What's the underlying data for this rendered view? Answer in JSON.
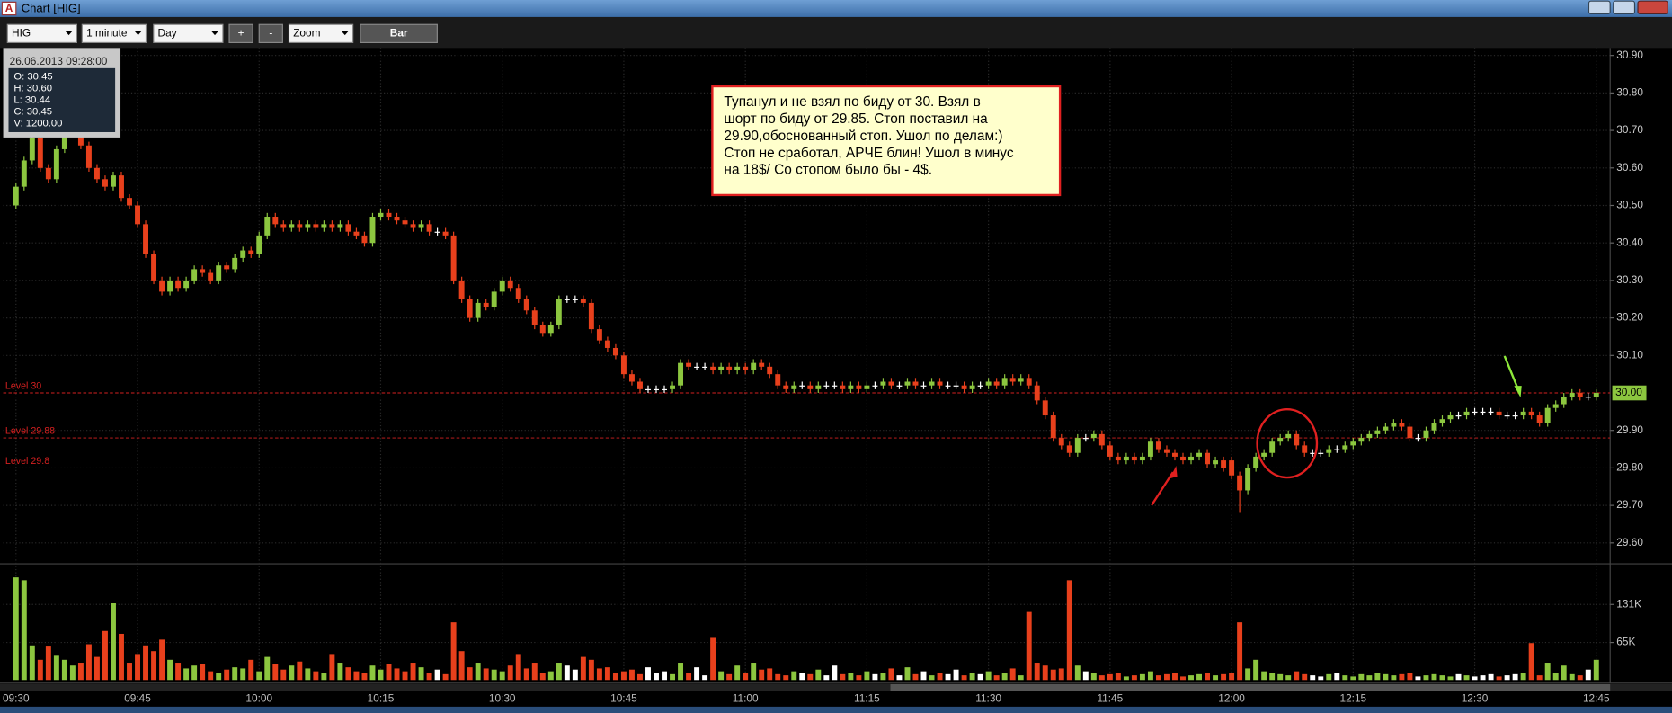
{
  "window": {
    "title": "Chart [HIG]",
    "icon": "A"
  },
  "toolbar": {
    "symbol": "HIG",
    "interval": "1 minute",
    "range": "Day",
    "plus": "+",
    "minus": "-",
    "zoom": "Zoom",
    "mode": "Bar"
  },
  "info": {
    "datetime": "26.06.2013 09:28:00",
    "lines": [
      "O: 30.45",
      "H: 30.60",
      "L: 30.44",
      "C: 30.45",
      "V: 1200.00"
    ]
  },
  "annotation": {
    "lines": [
      "Тупанул и не взял по биду от 30. Взял в",
      "шорт по биду от 29.85. Стоп поставил на",
      "29.90,обоснованный стоп. Ушол по делам:)",
      "Стоп не сработал, АРЧЕ блин! Ушол в минус",
      "на 18$/ Со стопом было бы - 4$."
    ]
  },
  "chart_data": {
    "type": "candlestick",
    "grid": true,
    "up_color": "#8cc63f",
    "down_color": "#e8401c",
    "flat_color": "#ffffff",
    "level_color": "#d42020",
    "x": [
      "09:30",
      "09:31",
      "09:32",
      "09:33",
      "09:34",
      "09:35",
      "09:36",
      "09:37",
      "09:38",
      "09:39",
      "09:40",
      "09:41",
      "09:42",
      "09:43",
      "09:44",
      "09:45",
      "09:46",
      "09:47",
      "09:48",
      "09:49",
      "09:50",
      "09:51",
      "09:52",
      "09:53",
      "09:54",
      "09:55",
      "09:56",
      "09:57",
      "09:58",
      "09:59",
      "10:00",
      "10:01",
      "10:02",
      "10:03",
      "10:04",
      "10:05",
      "10:06",
      "10:07",
      "10:08",
      "10:09",
      "10:10",
      "10:11",
      "10:12",
      "10:13",
      "10:14",
      "10:15",
      "10:16",
      "10:17",
      "10:18",
      "10:19",
      "10:20",
      "10:21",
      "10:22",
      "10:23",
      "10:24",
      "10:25",
      "10:26",
      "10:27",
      "10:28",
      "10:29",
      "10:30",
      "10:31",
      "10:32",
      "10:33",
      "10:34",
      "10:35",
      "10:36",
      "10:37",
      "10:38",
      "10:39",
      "10:40",
      "10:41",
      "10:42",
      "10:43",
      "10:44",
      "10:45",
      "10:46",
      "10:47",
      "10:48",
      "10:49",
      "10:50",
      "10:51",
      "10:52",
      "10:53",
      "10:54",
      "10:55",
      "10:56",
      "10:57",
      "10:58",
      "10:59",
      "11:00",
      "11:01",
      "11:02",
      "11:03",
      "11:04",
      "11:05",
      "11:06",
      "11:07",
      "11:08",
      "11:09",
      "11:10",
      "11:11",
      "11:12",
      "11:13",
      "11:14",
      "11:15",
      "11:16",
      "11:17",
      "11:18",
      "11:19",
      "11:20",
      "11:21",
      "11:22",
      "11:23",
      "11:24",
      "11:25",
      "11:26",
      "11:27",
      "11:28",
      "11:29",
      "11:30",
      "11:31",
      "11:32",
      "11:33",
      "11:34",
      "11:35",
      "11:36",
      "11:37",
      "11:38",
      "11:39",
      "11:40",
      "11:41",
      "11:42",
      "11:43",
      "11:44",
      "11:45",
      "11:46",
      "11:47",
      "11:48",
      "11:49",
      "11:50",
      "11:51",
      "11:52",
      "11:53",
      "11:54",
      "11:55",
      "11:56",
      "11:57",
      "11:58",
      "11:59",
      "12:00",
      "12:01",
      "12:02",
      "12:03",
      "12:04",
      "12:05",
      "12:06",
      "12:07",
      "12:08",
      "12:09",
      "12:10",
      "12:11",
      "12:12",
      "12:13",
      "12:14",
      "12:15",
      "12:16",
      "12:17",
      "12:18",
      "12:19",
      "12:20",
      "12:21",
      "12:22",
      "12:23",
      "12:24",
      "12:25",
      "12:26",
      "12:27",
      "12:28",
      "12:29",
      "12:30",
      "12:31",
      "12:32",
      "12:33",
      "12:34",
      "12:35",
      "12:36",
      "12:37",
      "12:38",
      "12:39",
      "12:40",
      "12:41",
      "12:42",
      "12:43",
      "12:44",
      "12:45"
    ],
    "open": [
      30.5,
      30.55,
      30.62,
      30.68,
      30.6,
      30.57,
      30.65,
      30.7,
      30.74,
      30.66,
      30.6,
      30.57,
      30.55,
      30.58,
      30.52,
      30.5,
      30.45,
      30.37,
      30.3,
      30.27,
      30.3,
      30.28,
      30.3,
      30.33,
      30.32,
      30.3,
      30.34,
      30.33,
      30.36,
      30.38,
      30.37,
      30.42,
      30.47,
      30.45,
      30.44,
      30.45,
      30.44,
      30.45,
      30.44,
      30.45,
      30.44,
      30.45,
      30.43,
      30.42,
      30.4,
      30.47,
      30.48,
      30.47,
      30.46,
      30.45,
      30.44,
      30.45,
      30.43,
      30.43,
      30.42,
      30.3,
      30.25,
      30.2,
      30.24,
      30.23,
      30.27,
      30.3,
      30.28,
      30.25,
      30.22,
      30.18,
      30.16,
      30.18,
      30.25,
      30.25,
      30.25,
      30.24,
      30.17,
      30.14,
      30.12,
      30.1,
      30.05,
      30.03,
      30.01,
      30.01,
      30.01,
      30.01,
      30.02,
      30.08,
      30.07,
      30.07,
      30.07,
      30.06,
      30.07,
      30.06,
      30.07,
      30.06,
      30.08,
      30.07,
      30.05,
      30.02,
      30.01,
      30.02,
      30.02,
      30.01,
      30.02,
      30.02,
      30.02,
      30.01,
      30.02,
      30.01,
      30.02,
      30.02,
      30.03,
      30.02,
      30.02,
      30.03,
      30.02,
      30.02,
      30.03,
      30.02,
      30.02,
      30.02,
      30.01,
      30.02,
      30.02,
      30.03,
      30.02,
      30.04,
      30.03,
      30.04,
      30.02,
      29.98,
      29.94,
      29.88,
      29.86,
      29.84,
      29.88,
      29.88,
      29.89,
      29.86,
      29.83,
      29.82,
      29.83,
      29.82,
      29.83,
      29.87,
      29.85,
      29.84,
      29.83,
      29.82,
      29.83,
      29.84,
      29.81,
      29.82,
      29.82,
      29.78,
      29.74,
      29.8,
      29.83,
      29.84,
      29.87,
      29.88,
      29.89,
      29.86,
      29.84,
      29.84,
      29.84,
      29.85,
      29.85,
      29.86,
      29.87,
      29.88,
      29.89,
      29.9,
      29.91,
      29.92,
      29.91,
      29.88,
      29.88,
      29.9,
      29.92,
      29.93,
      29.94,
      29.94,
      29.95,
      29.95,
      29.95,
      29.95,
      29.94,
      29.94,
      29.94,
      29.95,
      29.94,
      29.92,
      29.96,
      29.97,
      29.99,
      30.0,
      29.99,
      29.99
    ],
    "high": [
      30.56,
      30.63,
      30.69,
      30.69,
      30.61,
      30.66,
      30.71,
      30.75,
      30.75,
      30.67,
      30.61,
      30.58,
      30.59,
      30.59,
      30.53,
      30.51,
      30.46,
      30.38,
      30.31,
      30.31,
      30.31,
      30.31,
      30.34,
      30.34,
      30.33,
      30.35,
      30.35,
      30.37,
      30.39,
      30.39,
      30.43,
      30.48,
      30.48,
      30.46,
      30.46,
      30.46,
      30.46,
      30.46,
      30.46,
      30.46,
      30.46,
      30.46,
      30.44,
      30.43,
      30.48,
      30.49,
      30.49,
      30.48,
      30.47,
      30.46,
      30.46,
      30.46,
      30.44,
      30.44,
      30.43,
      30.31,
      30.26,
      30.25,
      30.25,
      30.28,
      30.31,
      30.31,
      30.29,
      30.26,
      30.23,
      30.19,
      30.19,
      30.26,
      30.26,
      30.26,
      30.26,
      30.25,
      30.18,
      30.15,
      30.13,
      30.11,
      30.06,
      30.04,
      30.02,
      30.02,
      30.02,
      30.03,
      30.09,
      30.09,
      30.08,
      30.08,
      30.08,
      30.08,
      30.08,
      30.08,
      30.08,
      30.09,
      30.09,
      30.08,
      30.06,
      30.03,
      30.03,
      30.03,
      30.03,
      30.03,
      30.03,
      30.03,
      30.03,
      30.03,
      30.03,
      30.03,
      30.03,
      30.04,
      30.04,
      30.03,
      30.04,
      30.04,
      30.03,
      30.04,
      30.04,
      30.03,
      30.03,
      30.03,
      30.03,
      30.03,
      30.04,
      30.04,
      30.05,
      30.05,
      30.05,
      30.05,
      30.03,
      29.99,
      29.95,
      29.89,
      29.87,
      29.89,
      29.89,
      29.9,
      29.9,
      29.87,
      29.84,
      29.84,
      29.84,
      29.84,
      29.88,
      29.88,
      29.86,
      29.85,
      29.84,
      29.84,
      29.85,
      29.85,
      29.83,
      29.83,
      29.83,
      29.79,
      29.81,
      29.84,
      29.85,
      29.88,
      29.89,
      29.9,
      29.9,
      29.87,
      29.85,
      29.85,
      29.86,
      29.86,
      29.87,
      29.88,
      29.89,
      29.9,
      29.91,
      29.92,
      29.93,
      29.93,
      29.92,
      29.89,
      29.91,
      29.93,
      29.94,
      29.95,
      29.95,
      29.96,
      29.96,
      29.96,
      29.96,
      29.96,
      29.95,
      29.95,
      29.96,
      29.96,
      29.95,
      29.97,
      29.98,
      30.0,
      30.01,
      30.01,
      30.0,
      30.01
    ],
    "low": [
      30.49,
      30.54,
      30.61,
      30.59,
      30.56,
      30.56,
      30.64,
      30.69,
      30.65,
      30.59,
      30.56,
      30.54,
      30.54,
      30.51,
      30.49,
      30.44,
      30.36,
      30.29,
      30.26,
      30.26,
      30.27,
      30.27,
      30.29,
      30.31,
      30.29,
      30.29,
      30.32,
      30.32,
      30.35,
      30.36,
      30.36,
      30.41,
      30.44,
      30.43,
      30.43,
      30.43,
      30.43,
      30.43,
      30.43,
      30.43,
      30.43,
      30.42,
      30.41,
      30.39,
      30.39,
      30.46,
      30.46,
      30.45,
      30.44,
      30.43,
      30.43,
      30.42,
      30.42,
      30.41,
      30.29,
      30.24,
      30.19,
      30.19,
      30.22,
      30.22,
      30.26,
      30.27,
      30.24,
      30.21,
      30.17,
      30.15,
      30.15,
      30.17,
      30.24,
      30.24,
      30.23,
      30.16,
      30.13,
      30.11,
      30.09,
      30.04,
      30.02,
      30.0,
      30.0,
      30.0,
      30.0,
      30.0,
      30.01,
      30.06,
      30.06,
      30.06,
      30.05,
      30.05,
      30.05,
      30.05,
      30.05,
      30.05,
      30.06,
      30.04,
      30.01,
      30.0,
      30.0,
      30.01,
      30.0,
      30.0,
      30.01,
      30.01,
      30.0,
      30.0,
      30.0,
      30.0,
      30.01,
      30.01,
      30.01,
      30.01,
      30.01,
      30.01,
      30.01,
      30.01,
      30.01,
      30.01,
      30.01,
      30.0,
      30.0,
      30.01,
      30.01,
      30.01,
      30.01,
      30.02,
      30.02,
      30.01,
      29.97,
      29.93,
      29.87,
      29.85,
      29.83,
      29.83,
      29.87,
      29.87,
      29.85,
      29.82,
      29.81,
      29.81,
      29.81,
      29.81,
      29.82,
      29.84,
      29.83,
      29.82,
      29.81,
      29.81,
      29.82,
      29.8,
      29.8,
      29.79,
      29.77,
      29.68,
      29.73,
      29.79,
      29.82,
      29.83,
      29.86,
      29.87,
      29.85,
      29.83,
      29.83,
      29.83,
      29.83,
      29.84,
      29.84,
      29.85,
      29.86,
      29.87,
      29.88,
      29.89,
      29.9,
      29.9,
      29.87,
      29.87,
      29.87,
      29.89,
      29.91,
      29.92,
      29.93,
      29.93,
      29.94,
      29.94,
      29.94,
      29.93,
      29.93,
      29.93,
      29.93,
      29.93,
      29.91,
      29.91,
      29.95,
      29.96,
      29.98,
      29.98,
      29.98,
      29.98
    ],
    "close": [
      30.55,
      30.62,
      30.68,
      30.6,
      30.57,
      30.65,
      30.7,
      30.74,
      30.66,
      30.6,
      30.57,
      30.55,
      30.58,
      30.52,
      30.5,
      30.45,
      30.37,
      30.3,
      30.27,
      30.3,
      30.28,
      30.3,
      30.33,
      30.32,
      30.3,
      30.34,
      30.33,
      30.36,
      30.38,
      30.37,
      30.42,
      30.47,
      30.45,
      30.44,
      30.45,
      30.44,
      30.45,
      30.44,
      30.45,
      30.44,
      30.45,
      30.43,
      30.42,
      30.4,
      30.47,
      30.48,
      30.47,
      30.46,
      30.45,
      30.44,
      30.45,
      30.43,
      30.43,
      30.42,
      30.3,
      30.25,
      30.2,
      30.24,
      30.23,
      30.27,
      30.3,
      30.28,
      30.25,
      30.22,
      30.18,
      30.16,
      30.18,
      30.25,
      30.25,
      30.25,
      30.24,
      30.17,
      30.14,
      30.12,
      30.1,
      30.05,
      30.03,
      30.01,
      30.01,
      30.01,
      30.01,
      30.02,
      30.08,
      30.07,
      30.07,
      30.07,
      30.06,
      30.07,
      30.06,
      30.07,
      30.06,
      30.08,
      30.07,
      30.05,
      30.02,
      30.01,
      30.02,
      30.02,
      30.01,
      30.02,
      30.02,
      30.02,
      30.01,
      30.02,
      30.01,
      30.02,
      30.02,
      30.03,
      30.02,
      30.02,
      30.03,
      30.02,
      30.02,
      30.03,
      30.02,
      30.02,
      30.02,
      30.01,
      30.02,
      30.02,
      30.03,
      30.02,
      30.04,
      30.03,
      30.04,
      30.02,
      29.98,
      29.94,
      29.88,
      29.86,
      29.84,
      29.88,
      29.88,
      29.89,
      29.86,
      29.83,
      29.82,
      29.83,
      29.82,
      29.83,
      29.87,
      29.85,
      29.84,
      29.83,
      29.82,
      29.83,
      29.84,
      29.81,
      29.82,
      29.8,
      29.78,
      29.74,
      29.8,
      29.83,
      29.84,
      29.87,
      29.88,
      29.89,
      29.86,
      29.84,
      29.84,
      29.84,
      29.85,
      29.85,
      29.86,
      29.87,
      29.88,
      29.89,
      29.9,
      29.91,
      29.92,
      29.91,
      29.88,
      29.88,
      29.9,
      29.92,
      29.93,
      29.94,
      29.94,
      29.95,
      29.95,
      29.95,
      29.95,
      29.94,
      29.94,
      29.94,
      29.95,
      29.94,
      29.92,
      29.96,
      29.97,
      29.99,
      30.0,
      29.99,
      29.99,
      30.0
    ],
    "volume": [
      178000,
      173000,
      60000,
      35000,
      58000,
      42000,
      35000,
      25000,
      30000,
      62000,
      40000,
      85000,
      133000,
      80000,
      30000,
      45000,
      60000,
      50000,
      70000,
      35000,
      30000,
      20000,
      25000,
      28000,
      15000,
      12000,
      18000,
      22000,
      20000,
      35000,
      15000,
      40000,
      28000,
      18000,
      25000,
      32000,
      20000,
      15000,
      12000,
      45000,
      30000,
      22000,
      15000,
      12000,
      25000,
      18000,
      28000,
      20000,
      15000,
      30000,
      22000,
      12000,
      18000,
      10000,
      100000,
      50000,
      22000,
      30000,
      20000,
      18000,
      15000,
      25000,
      45000,
      20000,
      30000,
      12000,
      15000,
      30000,
      25000,
      18000,
      40000,
      35000,
      20000,
      22000,
      12000,
      15000,
      18000,
      10000,
      22000,
      12000,
      15000,
      10000,
      30000,
      12000,
      22000,
      8000,
      73000,
      15000,
      10000,
      25000,
      12000,
      30000,
      18000,
      20000,
      10000,
      8000,
      15000,
      12000,
      10000,
      18000,
      8000,
      25000,
      10000,
      12000,
      8000,
      15000,
      10000,
      12000,
      20000,
      8000,
      22000,
      10000,
      15000,
      8000,
      12000,
      10000,
      18000,
      8000,
      12000,
      10000,
      15000,
      8000,
      12000,
      20000,
      8000,
      118000,
      30000,
      25000,
      18000,
      20000,
      173000,
      25000,
      15000,
      12000,
      8000,
      10000,
      12000,
      6000,
      8000,
      10000,
      15000,
      8000,
      10000,
      12000,
      6000,
      8000,
      10000,
      12000,
      8000,
      10000,
      12000,
      100000,
      20000,
      35000,
      15000,
      12000,
      10000,
      8000,
      15000,
      10000,
      8000,
      6000,
      10000,
      12000,
      8000,
      6000,
      10000,
      8000,
      12000,
      10000,
      8000,
      10000,
      12000,
      6000,
      8000,
      10000,
      8000,
      6000,
      10000,
      8000,
      6000,
      8000,
      10000,
      6000,
      8000,
      10000,
      12000,
      64000,
      8000,
      30000,
      12000,
      25000,
      10000,
      8000,
      18000,
      35000
    ],
    "ylim": [
      29.55,
      30.92
    ],
    "yticks": [
      {
        "value": 29.6,
        "label": "29.60"
      },
      {
        "value": 29.7,
        "label": "29.70"
      },
      {
        "value": 29.8,
        "label": "29.80"
      },
      {
        "value": 29.9,
        "label": "29.90"
      },
      {
        "value": 30.1,
        "label": "30.10"
      },
      {
        "value": 30.2,
        "label": "30.20"
      },
      {
        "value": 30.3,
        "label": "30.30"
      },
      {
        "value": 30.4,
        "label": "30.40"
      },
      {
        "value": 30.5,
        "label": "30.50"
      },
      {
        "value": 30.6,
        "label": "30.60"
      },
      {
        "value": 30.7,
        "label": "30.70"
      },
      {
        "value": 30.8,
        "label": "30.80"
      },
      {
        "value": 30.9,
        "label": "30.90"
      }
    ],
    "volume_ylim": [
      0,
      196000
    ],
    "volume_ticks": [
      {
        "value": 65000,
        "label": "65K"
      },
      {
        "value": 131000,
        "label": "131K"
      }
    ],
    "levels": [
      {
        "label": "Level 30",
        "value": 30
      },
      {
        "label": "Level 29.88",
        "value": 29.88
      },
      {
        "label": "Level 29.8",
        "value": 29.8
      }
    ],
    "last_price": {
      "value": 30,
      "label": "30.00"
    }
  }
}
